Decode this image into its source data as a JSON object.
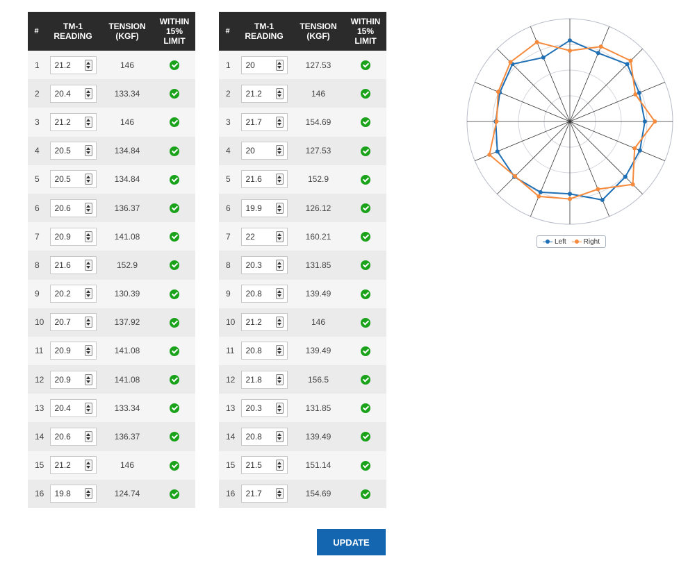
{
  "headers": {
    "num": "#",
    "reading": [
      "TM-1",
      "READING"
    ],
    "tension": [
      "TENSION",
      "(KGF)"
    ],
    "limit": [
      "WITHIN",
      "15%",
      "LIMIT"
    ]
  },
  "left_table": {
    "rows": [
      {
        "n": "1",
        "reading": "21.2",
        "tension": "146"
      },
      {
        "n": "2",
        "reading": "20.4",
        "tension": "133.34"
      },
      {
        "n": "3",
        "reading": "21.2",
        "tension": "146"
      },
      {
        "n": "4",
        "reading": "20.5",
        "tension": "134.84"
      },
      {
        "n": "5",
        "reading": "20.5",
        "tension": "134.84"
      },
      {
        "n": "6",
        "reading": "20.6",
        "tension": "136.37"
      },
      {
        "n": "7",
        "reading": "20.9",
        "tension": "141.08"
      },
      {
        "n": "8",
        "reading": "21.6",
        "tension": "152.9"
      },
      {
        "n": "9",
        "reading": "20.2",
        "tension": "130.39"
      },
      {
        "n": "10",
        "reading": "20.7",
        "tension": "137.92"
      },
      {
        "n": "11",
        "reading": "20.9",
        "tension": "141.08"
      },
      {
        "n": "12",
        "reading": "20.9",
        "tension": "141.08"
      },
      {
        "n": "13",
        "reading": "20.4",
        "tension": "133.34"
      },
      {
        "n": "14",
        "reading": "20.6",
        "tension": "136.37"
      },
      {
        "n": "15",
        "reading": "21.2",
        "tension": "146"
      },
      {
        "n": "16",
        "reading": "19.8",
        "tension": "124.74"
      }
    ]
  },
  "right_table": {
    "rows": [
      {
        "n": "1",
        "reading": "20",
        "tension": "127.53"
      },
      {
        "n": "2",
        "reading": "21.2",
        "tension": "146"
      },
      {
        "n": "3",
        "reading": "21.7",
        "tension": "154.69"
      },
      {
        "n": "4",
        "reading": "20",
        "tension": "127.53"
      },
      {
        "n": "5",
        "reading": "21.6",
        "tension": "152.9"
      },
      {
        "n": "6",
        "reading": "19.9",
        "tension": "126.12"
      },
      {
        "n": "7",
        "reading": "22",
        "tension": "160.21"
      },
      {
        "n": "8",
        "reading": "20.3",
        "tension": "131.85"
      },
      {
        "n": "9",
        "reading": "20.8",
        "tension": "139.49"
      },
      {
        "n": "10",
        "reading": "21.2",
        "tension": "146"
      },
      {
        "n": "11",
        "reading": "20.8",
        "tension": "139.49"
      },
      {
        "n": "12",
        "reading": "21.8",
        "tension": "156.5"
      },
      {
        "n": "13",
        "reading": "20.3",
        "tension": "131.85"
      },
      {
        "n": "14",
        "reading": "20.8",
        "tension": "139.49"
      },
      {
        "n": "15",
        "reading": "21.5",
        "tension": "151.14"
      },
      {
        "n": "16",
        "reading": "21.7",
        "tension": "154.69"
      }
    ]
  },
  "update_label": "UPDATE",
  "check_icon_color": "#1aa21a",
  "chart_data": {
    "type": "radar",
    "spokes": 16,
    "rlim": [
      0,
      185
    ],
    "rings": 4,
    "grid": true,
    "legend_position": "bottom",
    "series": [
      {
        "name": "Left",
        "color": "#1f6fb5",
        "values": [
          146,
          133.34,
          146,
          134.84,
          134.84,
          136.37,
          141.08,
          152.9,
          130.39,
          137.92,
          141.08,
          141.08,
          133.34,
          136.37,
          146,
          124.74
        ]
      },
      {
        "name": "Right",
        "color": "#f58a3c",
        "values": [
          127.53,
          146,
          154.69,
          127.53,
          152.9,
          126.12,
          160.21,
          131.85,
          139.49,
          146,
          139.49,
          156.5,
          131.85,
          139.49,
          151.14,
          154.69
        ]
      }
    ]
  }
}
